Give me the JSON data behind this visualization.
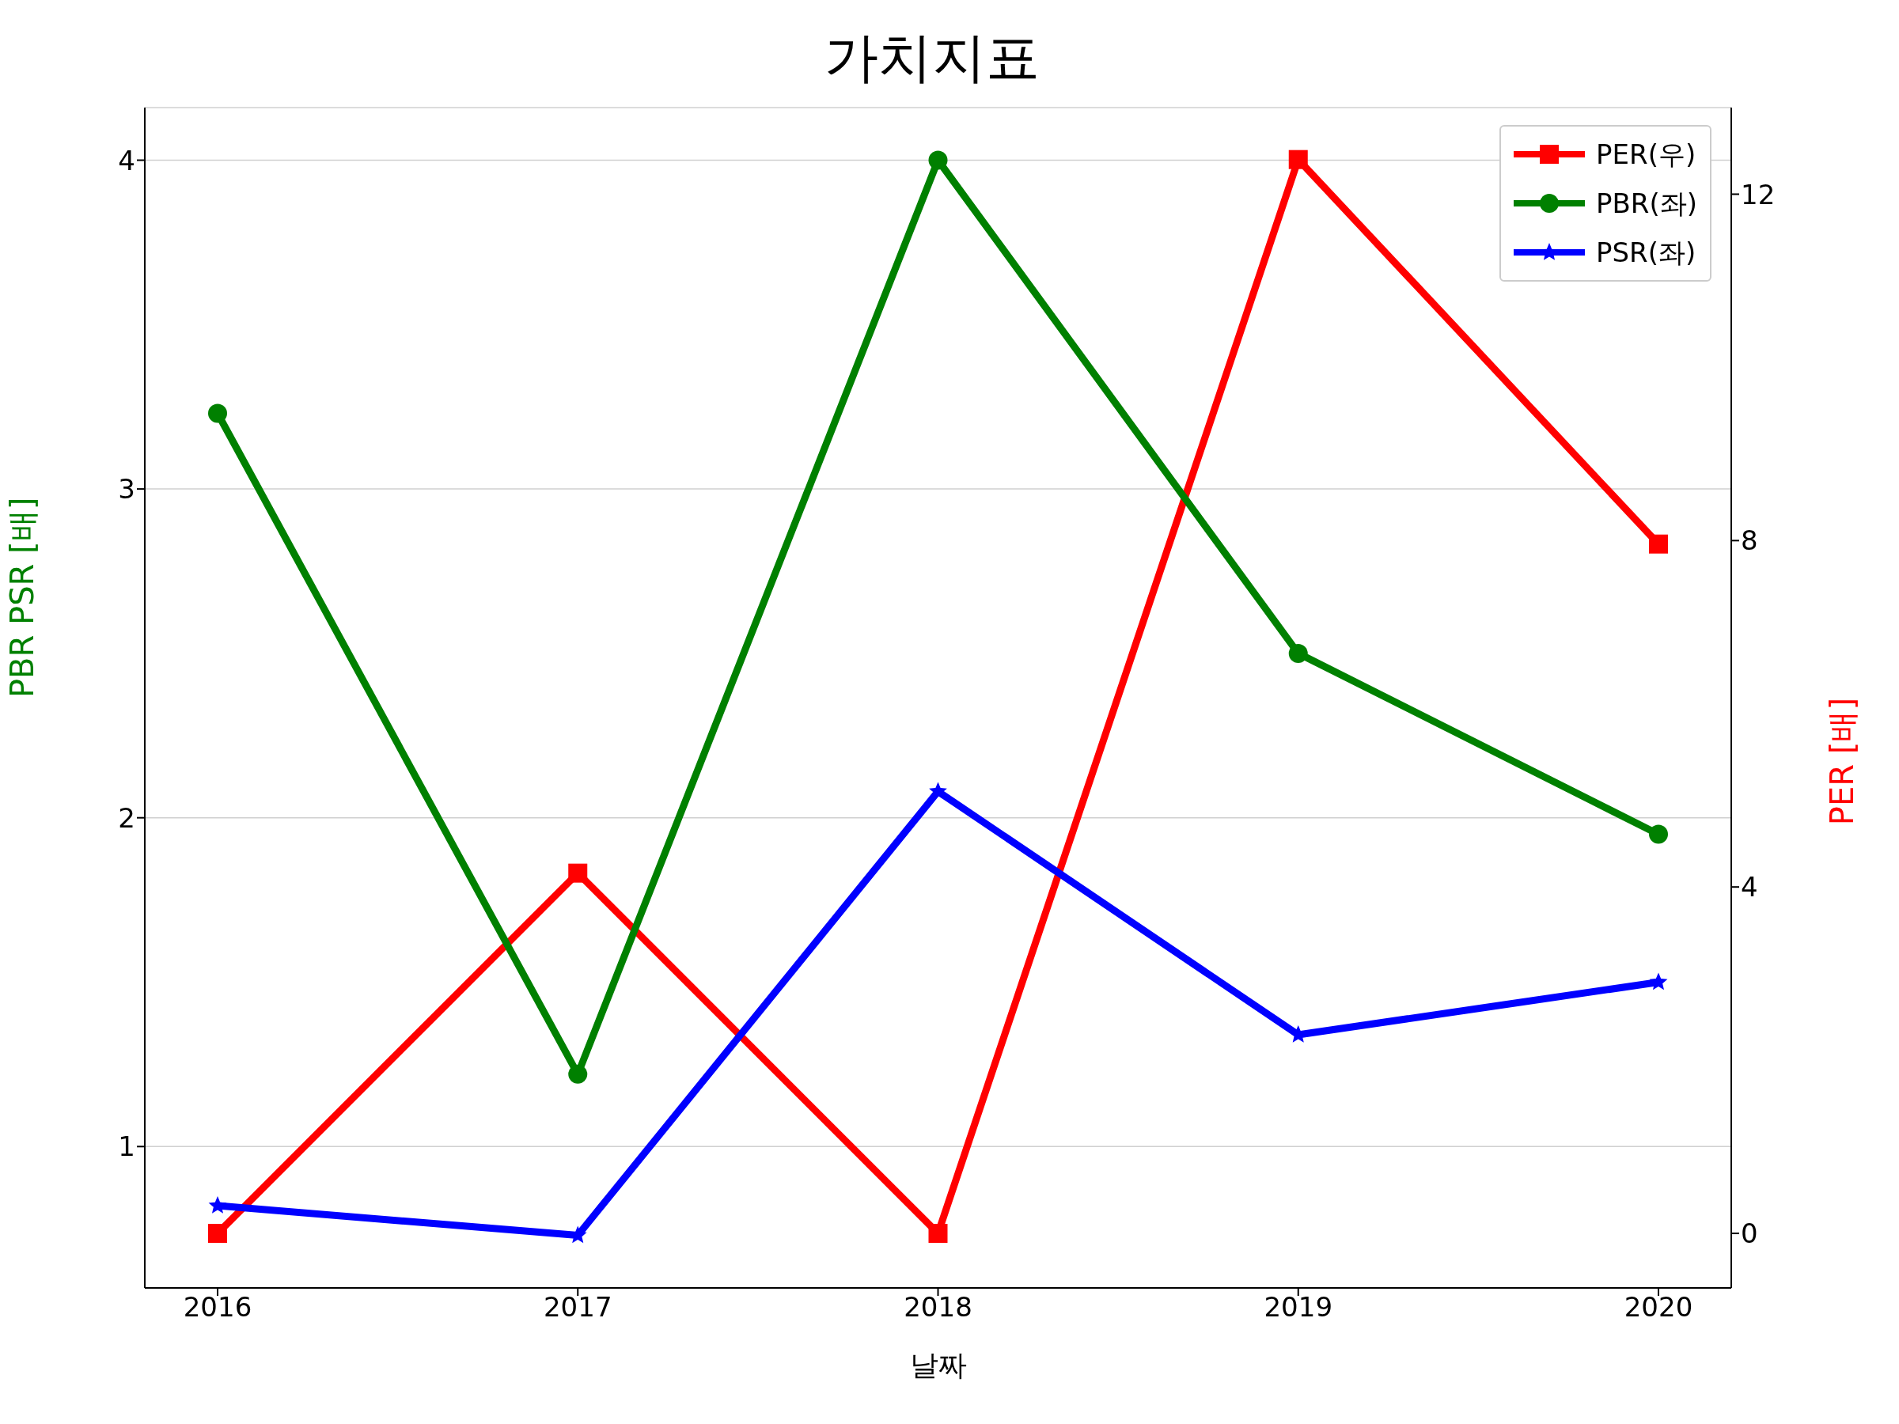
{
  "chart_data": {
    "type": "line",
    "title": "가치지표",
    "xlabel": "날짜",
    "ylabel": "PBR PSR [배]",
    "y2label": "PER [배]",
    "categories": [
      "2016",
      "2017",
      "2018",
      "2019",
      "2020"
    ],
    "series": [
      {
        "name": "PER(우)",
        "color": "#ff0000",
        "axis": "y2",
        "marker": "square",
        "values": [
          0,
          4.16,
          0,
          12.4,
          7.96
        ]
      },
      {
        "name": "PBR(좌)",
        "color": "#008000",
        "marker": "circle",
        "values": [
          3.23,
          1.22,
          4.0,
          2.5,
          1.95
        ]
      },
      {
        "name": "PSR(좌)",
        "color": "#0000ff",
        "marker": "star",
        "values": [
          0.82,
          0.73,
          2.08,
          1.34,
          1.5
        ]
      }
    ],
    "ylim": [
      0.57,
      4.16
    ],
    "yticks": [
      1,
      2,
      3,
      4
    ],
    "y2lim": [
      -0.63,
      13.0
    ],
    "y2ticks": [
      0,
      4,
      8,
      12
    ],
    "grid": "y",
    "legend": "top right",
    "line_style": "solid"
  }
}
